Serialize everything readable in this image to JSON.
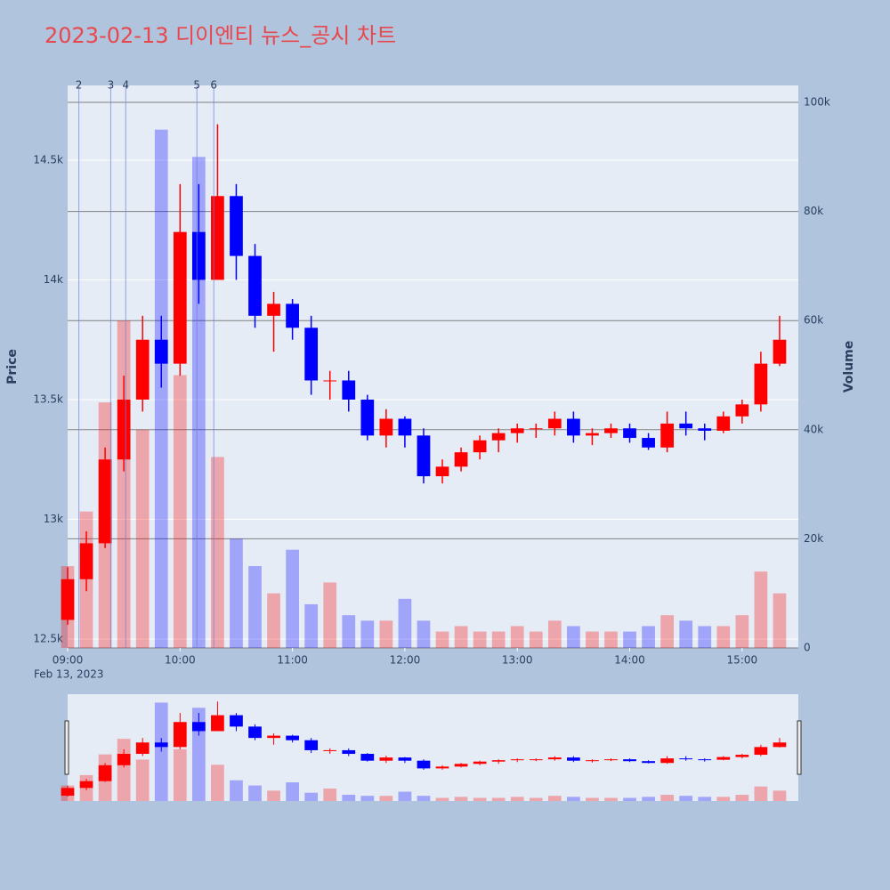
{
  "chart_data": {
    "type": "candlestick",
    "title": "2023-02-13 디이엔티 뉴스_공시 차트",
    "x": [
      "2023-02-13 09:00",
      "2023-02-13 09:10",
      "2023-02-13 09:20",
      "2023-02-13 09:30",
      "2023-02-13 09:40",
      "2023-02-13 09:50",
      "2023-02-13 10:00",
      "2023-02-13 10:10",
      "2023-02-13 10:20",
      "2023-02-13 10:30",
      "2023-02-13 10:40",
      "2023-02-13 10:50",
      "2023-02-13 11:00",
      "2023-02-13 11:10",
      "2023-02-13 11:20",
      "2023-02-13 11:30",
      "2023-02-13 11:40",
      "2023-02-13 11:50",
      "2023-02-13 12:00",
      "2023-02-13 12:10",
      "2023-02-13 12:20",
      "2023-02-13 12:30",
      "2023-02-13 12:40",
      "2023-02-13 12:50",
      "2023-02-13 13:00",
      "2023-02-13 13:10",
      "2023-02-13 13:20",
      "2023-02-13 13:30",
      "2023-02-13 13:40",
      "2023-02-13 13:50",
      "2023-02-13 14:00",
      "2023-02-13 14:10",
      "2023-02-13 14:20",
      "2023-02-13 14:30",
      "2023-02-13 14:40",
      "2023-02-13 14:50",
      "2023-02-13 15:00",
      "2023-02-13 15:10",
      "2023-02-13 15:20"
    ],
    "open": [
      12580,
      12750,
      12900,
      13250,
      13500,
      13750,
      13650,
      14200,
      14000,
      14350,
      14100,
      13850,
      13900,
      13800,
      13580,
      13580,
      13500,
      13350,
      13420,
      13350,
      13180,
      13220,
      13280,
      13330,
      13360,
      13380,
      13380,
      13420,
      13350,
      13360,
      13380,
      13340,
      13300,
      13400,
      13380,
      13370,
      13430,
      13480,
      13650
    ],
    "high": [
      12800,
      12950,
      13300,
      13600,
      13850,
      13850,
      14400,
      14400,
      14650,
      14400,
      14150,
      13950,
      13920,
      13850,
      13620,
      13620,
      13520,
      13460,
      13430,
      13380,
      13250,
      13300,
      13350,
      13380,
      13400,
      13400,
      13450,
      13450,
      13380,
      13400,
      13400,
      13360,
      13450,
      13450,
      13400,
      13450,
      13500,
      13700,
      13850
    ],
    "low": [
      12560,
      12700,
      12880,
      13200,
      13450,
      13550,
      13600,
      13900,
      14000,
      14000,
      13800,
      13700,
      13750,
      13520,
      13500,
      13450,
      13330,
      13300,
      13300,
      13150,
      13150,
      13200,
      13250,
      13280,
      13320,
      13340,
      13350,
      13320,
      13310,
      13340,
      13320,
      13290,
      13280,
      13350,
      13330,
      13360,
      13400,
      13450,
      13640
    ],
    "close": [
      12750,
      12900,
      13250,
      13500,
      13750,
      13650,
      14200,
      14000,
      14350,
      14100,
      13850,
      13900,
      13800,
      13580,
      13580,
      13500,
      13350,
      13420,
      13350,
      13180,
      13220,
      13280,
      13330,
      13360,
      13380,
      13380,
      13420,
      13350,
      13360,
      13380,
      13340,
      13300,
      13400,
      13380,
      13370,
      13430,
      13480,
      13650,
      13750
    ],
    "volume": [
      15000,
      25000,
      45000,
      60000,
      40000,
      95000,
      50000,
      90000,
      35000,
      20000,
      15000,
      10000,
      18000,
      8000,
      12000,
      6000,
      5000,
      5000,
      9000,
      5000,
      3000,
      4000,
      3000,
      3000,
      4000,
      3000,
      5000,
      4000,
      3000,
      3000,
      3000,
      4000,
      6000,
      5000,
      4000,
      4000,
      6000,
      14000,
      10000
    ],
    "increasing_color": "#ff0000",
    "decreasing_color": "#0000ff",
    "xlim": [
      "2023-02-13 09:00",
      "2023-02-13 15:30"
    ],
    "xticks": [
      {
        "value": "2023-02-13 09:00",
        "label": "09:00"
      },
      {
        "value": "2023-02-13 10:00",
        "label": "10:00"
      },
      {
        "value": "2023-02-13 11:00",
        "label": "11:00"
      },
      {
        "value": "2023-02-13 12:00",
        "label": "12:00"
      },
      {
        "value": "2023-02-13 13:00",
        "label": "13:00"
      },
      {
        "value": "2023-02-13 14:00",
        "label": "14:00"
      },
      {
        "value": "2023-02-13 15:00",
        "label": "15:00"
      }
    ],
    "x_date_label": "Feb 13, 2023",
    "ylim": [
      12463,
      14812
    ],
    "yticks": [
      {
        "value": 12500,
        "label": "12.5k"
      },
      {
        "value": 13000,
        "label": "13k"
      },
      {
        "value": 13500,
        "label": "13.5k"
      },
      {
        "value": 14000,
        "label": "14k"
      },
      {
        "value": 14500,
        "label": "14.5k"
      }
    ],
    "y2lim": [
      0,
      103100
    ],
    "y2ticks": [
      0,
      {
        "value": 20000,
        "label": "20k"
      },
      {
        "value": 40000,
        "label": "40k"
      },
      {
        "value": 60000,
        "label": "60k"
      },
      {
        "value": 80000,
        "label": "80k"
      },
      {
        "value": 100000,
        "label": "100k"
      }
    ],
    "y_label": "Price",
    "y2_label": "Volume",
    "events": [
      {
        "x": "2023-02-13 09:06",
        "label": "2"
      },
      {
        "x": "2023-02-13 09:23",
        "label": "3"
      },
      {
        "x": "2023-02-13 09:31",
        "label": "4"
      },
      {
        "x": "2023-02-13 10:09",
        "label": "5"
      },
      {
        "x": "2023-02-13 10:18",
        "label": "6"
      }
    ],
    "grid": true,
    "rangeslider": true
  }
}
